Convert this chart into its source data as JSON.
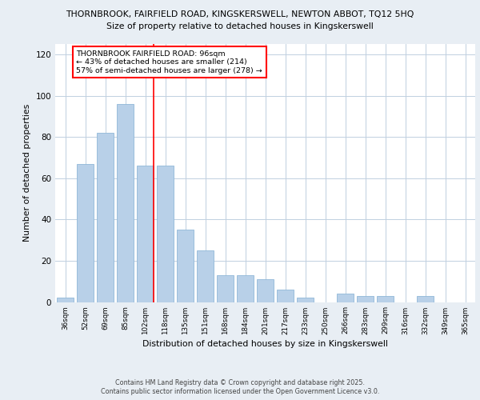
{
  "title1": "THORNBROOK, FAIRFIELD ROAD, KINGSKERSWELL, NEWTON ABBOT, TQ12 5HQ",
  "title2": "Size of property relative to detached houses in Kingskerswell",
  "xlabel": "Distribution of detached houses by size in Kingskerswell",
  "ylabel": "Number of detached properties",
  "categories": [
    "36sqm",
    "52sqm",
    "69sqm",
    "85sqm",
    "102sqm",
    "118sqm",
    "135sqm",
    "151sqm",
    "168sqm",
    "184sqm",
    "201sqm",
    "217sqm",
    "233sqm",
    "250sqm",
    "266sqm",
    "283sqm",
    "299sqm",
    "316sqm",
    "332sqm",
    "349sqm",
    "365sqm"
  ],
  "values": [
    2,
    67,
    82,
    96,
    66,
    66,
    35,
    25,
    13,
    13,
    11,
    6,
    2,
    0,
    4,
    3,
    3,
    0,
    3,
    0,
    0
  ],
  "bar_color": "#b8d0e8",
  "bar_edgecolor": "#90b8d8",
  "vline_color": "red",
  "vline_index": 4,
  "annotation_text": "THORNBROOK FAIRFIELD ROAD: 96sqm\n← 43% of detached houses are smaller (214)\n57% of semi-detached houses are larger (278) →",
  "ylim": [
    0,
    125
  ],
  "yticks": [
    0,
    20,
    40,
    60,
    80,
    100,
    120
  ],
  "footer": "Contains HM Land Registry data © Crown copyright and database right 2025.\nContains public sector information licensed under the Open Government Licence v3.0.",
  "bg_color": "#e8eef4",
  "plot_bg_color": "#ffffff",
  "grid_color": "#c0d0e0"
}
